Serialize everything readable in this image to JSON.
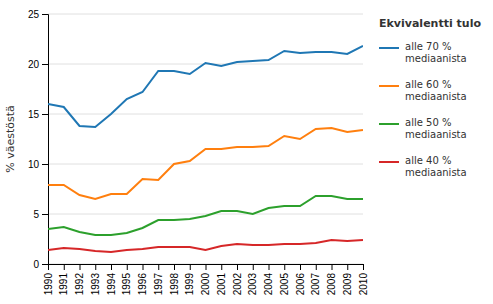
{
  "chart_data": {
    "type": "line",
    "ylabel": "% väestöstä",
    "legend_title": "Ekvivalentti tulo",
    "x": [
      1990,
      1991,
      1992,
      1993,
      1994,
      1995,
      1996,
      1997,
      1998,
      1999,
      2000,
      2001,
      2002,
      2003,
      2004,
      2005,
      2006,
      2007,
      2008,
      2009,
      2010
    ],
    "series": [
      {
        "name": "alle 70 %\nmediaanista",
        "values": [
          16.0,
          15.7,
          13.8,
          13.7,
          15.0,
          16.5,
          17.2,
          19.3,
          19.3,
          19.0,
          20.1,
          19.8,
          20.2,
          20.3,
          20.4,
          21.3,
          21.1,
          21.2,
          21.2,
          21.0,
          21.8
        ]
      },
      {
        "name": "alle 60 %\nmediaanista",
        "values": [
          7.9,
          7.9,
          6.9,
          6.5,
          7.0,
          7.0,
          8.5,
          8.4,
          10.0,
          10.3,
          11.5,
          11.5,
          11.7,
          11.7,
          11.8,
          12.8,
          12.5,
          13.5,
          13.6,
          13.2,
          13.4
        ]
      },
      {
        "name": "alle 50 %\nmediaanista",
        "values": [
          3.5,
          3.7,
          3.2,
          2.9,
          2.9,
          3.1,
          3.6,
          4.4,
          4.4,
          4.5,
          4.8,
          5.3,
          5.3,
          5.0,
          5.6,
          5.8,
          5.8,
          6.8,
          6.8,
          6.5,
          6.5
        ]
      },
      {
        "name": "alle 40 %\nmediaanista",
        "values": [
          1.4,
          1.6,
          1.5,
          1.3,
          1.2,
          1.4,
          1.5,
          1.7,
          1.7,
          1.7,
          1.4,
          1.8,
          2.0,
          1.9,
          1.9,
          2.0,
          2.0,
          2.1,
          2.4,
          2.3,
          2.4
        ]
      }
    ],
    "xlim": [
      1990,
      2010
    ],
    "xticks": [
      1990,
      1991,
      1992,
      1993,
      1994,
      1995,
      1996,
      1997,
      1998,
      1999,
      2000,
      2001,
      2002,
      2003,
      2004,
      2005,
      2006,
      2007,
      2008,
      2009,
      2010
    ],
    "ylim": [
      0,
      25
    ],
    "yticks": [
      0,
      5,
      10,
      15,
      20,
      25
    ],
    "grid": true,
    "legend": "right"
  }
}
